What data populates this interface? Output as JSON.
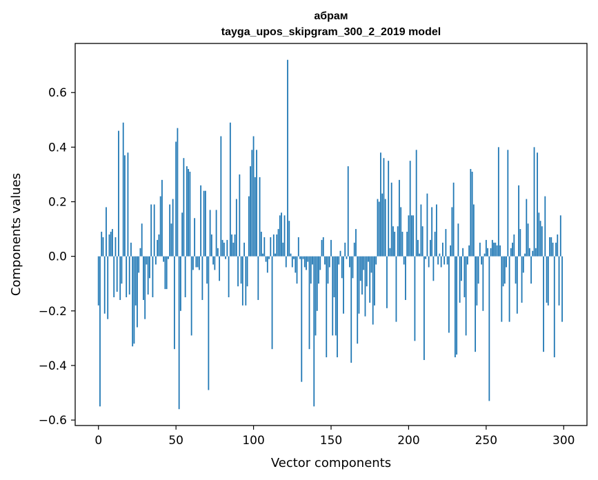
{
  "chart_data": {
    "type": "bar",
    "title": "абрам",
    "subtitle": "tayga_upos_skipgram_300_2_2019 model",
    "xlabel": "Vector components",
    "ylabel": "Components values",
    "xlim": [
      -15,
      315
    ],
    "ylim": [
      -0.62,
      0.78
    ],
    "xticks": [
      0,
      50,
      100,
      150,
      200,
      250,
      300
    ],
    "xtick_labels": [
      "0",
      "50",
      "100",
      "150",
      "200",
      "250",
      "300"
    ],
    "yticks": [
      -0.6,
      -0.4,
      -0.2,
      0.0,
      0.2,
      0.4,
      0.6
    ],
    "ytick_labels": [
      "−0.6",
      "−0.4",
      "−0.2",
      "0.0",
      "0.2",
      "0.4",
      "0.6"
    ],
    "bar_color": "#1f77b4",
    "x_start": 0,
    "values": [
      -0.18,
      -0.55,
      0.09,
      0.07,
      -0.21,
      0.18,
      -0.23,
      0.08,
      0.09,
      0.1,
      -0.15,
      0.07,
      -0.13,
      0.46,
      -0.16,
      -0.1,
      0.49,
      0.37,
      -0.15,
      0.38,
      -0.14,
      0.05,
      -0.33,
      -0.32,
      -0.18,
      -0.26,
      -0.06,
      0.03,
      0.12,
      -0.16,
      -0.23,
      -0.03,
      -0.14,
      -0.08,
      0.19,
      -0.15,
      0.19,
      -0.03,
      0.06,
      0.08,
      0.22,
      0.28,
      -0.02,
      -0.12,
      -0.12,
      -0.01,
      0.19,
      0.12,
      0.21,
      -0.34,
      0.42,
      0.47,
      -0.56,
      -0.2,
      0.16,
      0.36,
      -0.15,
      0.33,
      0.32,
      0.31,
      -0.29,
      -0.05,
      0.14,
      -0.04,
      -0.04,
      -0.05,
      0.26,
      -0.16,
      0.24,
      0.24,
      -0.1,
      -0.49,
      0.17,
      0.08,
      -0.03,
      -0.05,
      0.17,
      0.03,
      -0.09,
      0.44,
      0.06,
      0.05,
      -0.01,
      0.06,
      -0.15,
      0.49,
      0.08,
      0.05,
      0.08,
      0.21,
      -0.11,
      0.3,
      -0.1,
      -0.18,
      0.05,
      -0.18,
      -0.11,
      0.22,
      0.33,
      0.39,
      0.44,
      0.29,
      0.39,
      -0.16,
      0.29,
      0.09,
      0.01,
      0.07,
      -0.02,
      -0.06,
      -0.01,
      0.07,
      -0.34,
      0.08,
      0.01,
      0.08,
      0.1,
      0.15,
      0.16,
      0.05,
      0.15,
      -0.04,
      0.72,
      0.13,
      0.01,
      -0.04,
      -0.01,
      -0.06,
      -0.1,
      0.07,
      -0.01,
      -0.46,
      -0.01,
      -0.04,
      -0.05,
      -0.02,
      -0.34,
      -0.1,
      -0.03,
      -0.55,
      -0.29,
      -0.2,
      -0.1,
      -0.05,
      0.06,
      0.07,
      -0.03,
      -0.37,
      -0.1,
      -0.04,
      0.06,
      -0.29,
      -0.15,
      -0.29,
      -0.37,
      -0.03,
      0.02,
      -0.08,
      -0.21,
      0.05,
      -0.01,
      0.33,
      -0.04,
      -0.39,
      -0.08,
      0.05,
      0.1,
      -0.32,
      -0.21,
      -0.09,
      -0.14,
      -0.05,
      -0.22,
      -0.11,
      -0.02,
      -0.17,
      -0.06,
      -0.25,
      -0.18,
      -0.03,
      0.21,
      0.2,
      0.38,
      0.23,
      0.36,
      0.21,
      -0.19,
      0.35,
      0.03,
      0.27,
      0.11,
      0.09,
      -0.24,
      0.11,
      0.28,
      0.18,
      0.09,
      -0.03,
      -0.16,
      0.09,
      0.15,
      0.35,
      0.15,
      0.15,
      -0.31,
      0.39,
      0.06,
      0.01,
      0.19,
      0.11,
      -0.38,
      -0.01,
      0.23,
      -0.04,
      0.06,
      0.18,
      -0.09,
      0.09,
      0.19,
      -0.03,
      0.01,
      -0.04,
      0.05,
      -0.03,
      0.1,
      -0.03,
      -0.28,
      0.04,
      0.18,
      0.27,
      -0.37,
      -0.36,
      0.12,
      -0.17,
      -0.09,
      0.03,
      -0.15,
      -0.29,
      -0.03,
      0.04,
      0.32,
      0.31,
      0.19,
      -0.35,
      -0.18,
      -0.1,
      0.05,
      -0.03,
      -0.2,
      0.01,
      0.06,
      0.03,
      -0.53,
      0.03,
      0.06,
      0.05,
      0.05,
      0.04,
      0.4,
      0.04,
      -0.24,
      -0.11,
      -0.1,
      -0.04,
      0.39,
      -0.24,
      0.03,
      0.05,
      0.08,
      -0.1,
      -0.21,
      0.26,
      0.1,
      -0.17,
      -0.06,
      0.01,
      0.21,
      0.12,
      0.03,
      -0.1,
      0.02,
      0.4,
      0.03,
      0.38,
      0.16,
      0.13,
      0.11,
      -0.35,
      0.22,
      -0.17,
      -0.18,
      0.07,
      0.07,
      0.05,
      -0.37,
      0.05,
      0.08,
      -0.18,
      0.15,
      -0.24
    ]
  }
}
